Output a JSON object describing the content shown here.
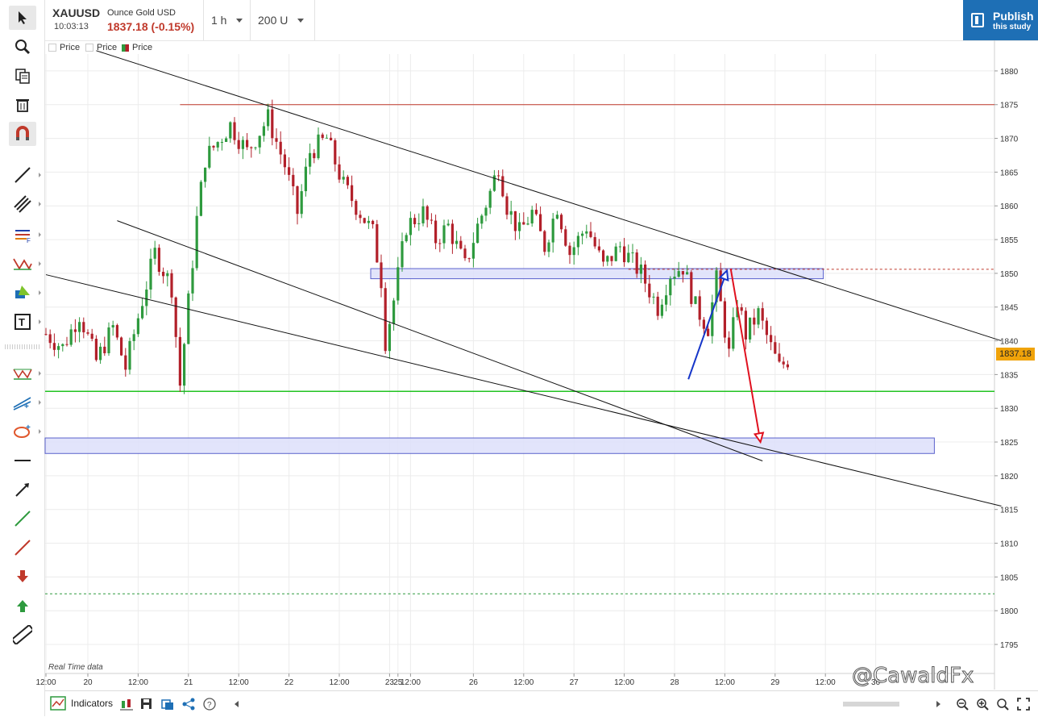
{
  "header": {
    "symbol": "XAUUSD",
    "symbol_name": "Ounce Gold USD",
    "time": "10:03:13",
    "last_price": "1837.18 (-0.15%)",
    "interval": "1 h",
    "units": "200 U",
    "publish_title": "Publish",
    "publish_sub": "this study"
  },
  "legend": [
    "Price",
    "Price",
    "Price"
  ],
  "footer": {
    "realtime": "Real Time data",
    "indicators_label": "Indicators",
    "watermark": "@CawaldFx"
  },
  "price_tag": "1837.18",
  "toolbar_icons": [
    "cursor-icon",
    "zoom-icon",
    "copy-icon",
    "trash-icon",
    "magnet-icon",
    "trendline-icon",
    "parallel-channel-icon",
    "fibonacci-icon",
    "pattern-icon",
    "shapes-icon",
    "text-icon",
    "harmonic-icon",
    "projection-icon",
    "ellipse-icon",
    "horizontal-line-icon",
    "arrow-line-icon",
    "green-line-icon",
    "red-line-icon",
    "sell-arrow-icon",
    "buy-arrow-icon",
    "ruler-icon"
  ],
  "colors": {
    "bull": "#2e9a3e",
    "bear": "#b2202a",
    "accent": "#1e6fb5",
    "price_tag": "#f0a30a",
    "support": "#22c322",
    "resistance": "#c0392b",
    "zone_fill": "#dfe2fb",
    "zone_stroke": "#4a52c8"
  },
  "chart_data": {
    "type": "candlestick",
    "title": "XAUUSD 1h",
    "xlabel": "",
    "ylabel": "",
    "ylim": [
      1790.7,
      1882.5
    ],
    "y_ticks": [
      1880,
      1875,
      1870,
      1865,
      1860,
      1855,
      1850,
      1845,
      1840,
      1835,
      1830,
      1825,
      1820,
      1815,
      1810,
      1805,
      1800,
      1795
    ],
    "x_ticks": [
      {
        "label": "12:00",
        "i": 0
      },
      {
        "label": "20",
        "i": 10
      },
      {
        "label": "12:00",
        "i": 22
      },
      {
        "label": "21",
        "i": 34
      },
      {
        "label": "12:00",
        "i": 46
      },
      {
        "label": "22",
        "i": 58
      },
      {
        "label": "12:00",
        "i": 70
      },
      {
        "label": "23",
        "i": 82
      },
      {
        "label": "25",
        "i": 84
      },
      {
        "label": "12:00",
        "i": 87
      },
      {
        "label": "26",
        "i": 102
      },
      {
        "label": "12:00",
        "i": 114
      },
      {
        "label": "27",
        "i": 126
      },
      {
        "label": "12:00",
        "i": 138
      },
      {
        "label": "28",
        "i": 150
      },
      {
        "label": "12:00",
        "i": 162
      },
      {
        "label": "29",
        "i": 174
      },
      {
        "label": "12:00",
        "i": 186
      },
      {
        "label": "30",
        "i": 198
      }
    ],
    "bar_x_start": 57,
    "bar_step": 5.2,
    "anchors": [
      [
        0,
        1841
      ],
      [
        4,
        1839
      ],
      [
        8,
        1844
      ],
      [
        12,
        1837
      ],
      [
        16,
        1842
      ],
      [
        19,
        1836
      ],
      [
        23,
        1846
      ],
      [
        26,
        1853
      ],
      [
        30,
        1848
      ],
      [
        32,
        1833.5
      ],
      [
        36,
        1858
      ],
      [
        38,
        1867
      ],
      [
        44,
        1872
      ],
      [
        48,
        1868
      ],
      [
        53,
        1873
      ],
      [
        57,
        1866
      ],
      [
        60,
        1859
      ],
      [
        63,
        1868
      ],
      [
        67,
        1870
      ],
      [
        71,
        1863
      ],
      [
        75,
        1859
      ],
      [
        78,
        1856
      ],
      [
        80,
        1849
      ],
      [
        81,
        1840
      ],
      [
        83,
        1846
      ],
      [
        86,
        1857
      ],
      [
        90,
        1859
      ],
      [
        93,
        1855
      ],
      [
        96,
        1857
      ],
      [
        100,
        1851
      ],
      [
        103,
        1857
      ],
      [
        106,
        1862
      ],
      [
        108,
        1866
      ],
      [
        110,
        1860
      ],
      [
        113,
        1856
      ],
      [
        116,
        1859
      ],
      [
        119,
        1854
      ],
      [
        122,
        1860
      ],
      [
        125,
        1853
      ],
      [
        129,
        1857
      ],
      [
        133,
        1851
      ],
      [
        137,
        1854
      ],
      [
        142,
        1850
      ],
      [
        146,
        1845
      ],
      [
        149,
        1850
      ],
      [
        152,
        1851
      ],
      [
        155,
        1845
      ],
      [
        158,
        1842
      ],
      [
        160,
        1849
      ],
      [
        163,
        1838
      ],
      [
        165,
        1846
      ],
      [
        167,
        1841
      ],
      [
        170,
        1844
      ],
      [
        173,
        1839
      ],
      [
        175,
        1836
      ],
      [
        177,
        1837.2
      ]
    ],
    "support_line": 1832.5,
    "resistance_line": 1875,
    "red_dashed": 1850.6,
    "green_dashed": 1802.5,
    "zones": [
      [
        1849.2,
        1850.7
      ],
      [
        1823.3,
        1825.6
      ]
    ],
    "current_price": 1837.18
  }
}
